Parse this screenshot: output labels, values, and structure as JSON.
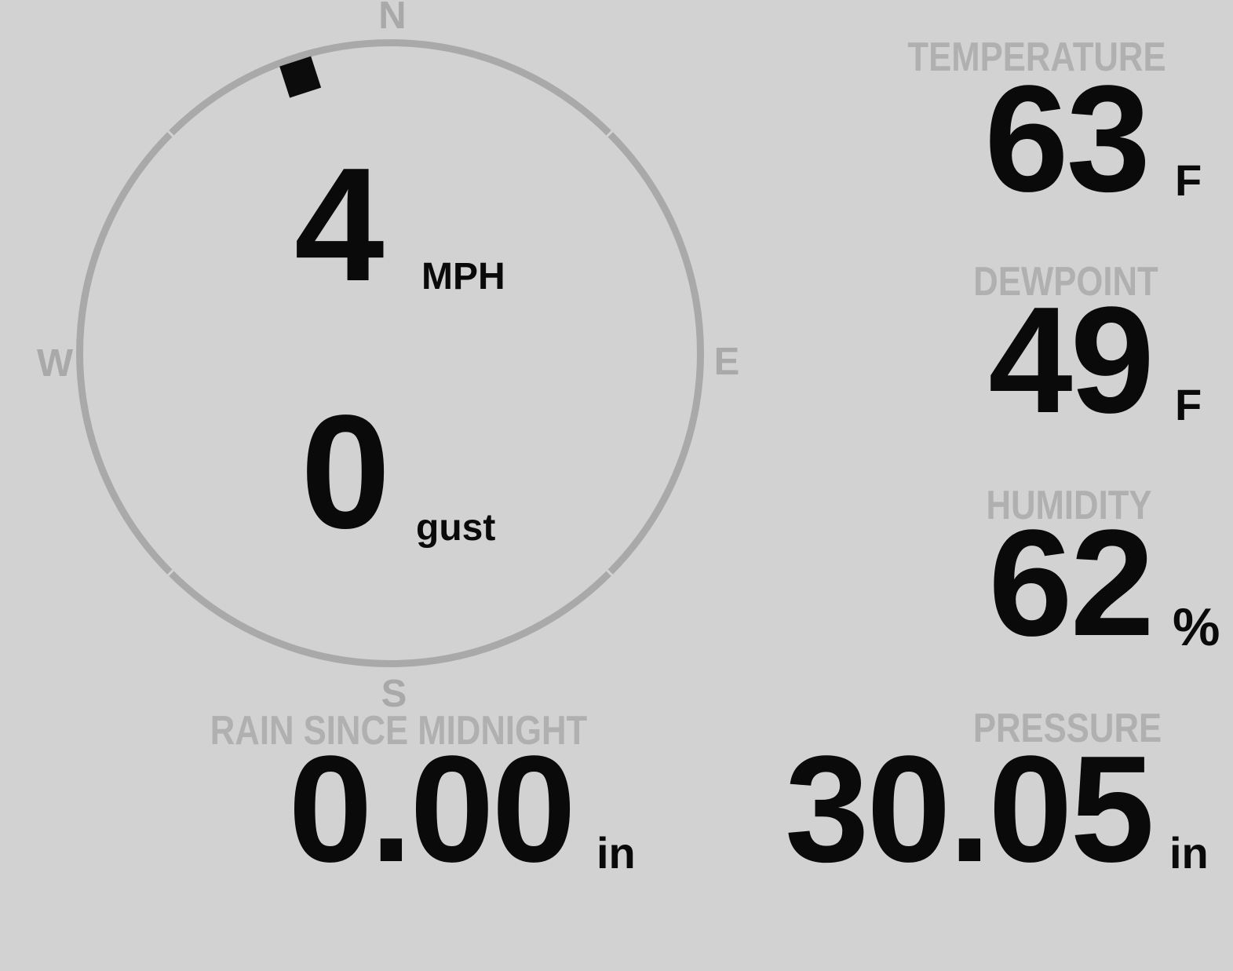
{
  "theme": {
    "background": "#d2d2d2",
    "ring_color": "#a9a9a9",
    "cardinal_color": "#a9a9a9",
    "label_color": "#b0b0b0",
    "value_color": "#0a0a0a",
    "marker_color": "#0c0c0c"
  },
  "wind": {
    "speed": "4",
    "speed_unit": "MPH",
    "gust": "0",
    "gust_unit": "gust",
    "direction_degrees": 342,
    "cardinals": {
      "north": "N",
      "east": "E",
      "south": "S",
      "west": "W"
    }
  },
  "metrics": {
    "temperature": {
      "label": "TEMPERATURE",
      "value": "63",
      "unit": "F"
    },
    "dewpoint": {
      "label": "DEWPOINT",
      "value": "49",
      "unit": "F"
    },
    "humidity": {
      "label": "HUMIDITY",
      "value": "62",
      "unit": "%"
    },
    "rain": {
      "label": "RAIN SINCE MIDNIGHT",
      "value": "0.00",
      "unit": "in"
    },
    "pressure": {
      "label": "PRESSURE",
      "value": "30.05",
      "unit": "in"
    }
  }
}
